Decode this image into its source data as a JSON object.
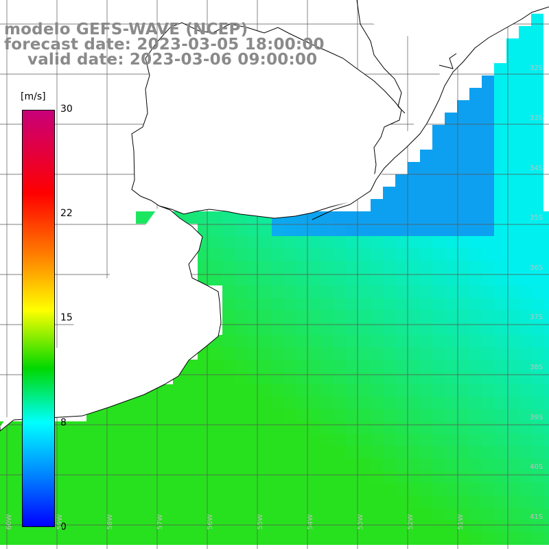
{
  "title": {
    "line1": "modelo GEFS-WAVE (NCEP)",
    "line2": "forecast date: 2023-03-05 18:00:00",
    "line3": "valid date: 2023-03-06 09:00:00"
  },
  "colorbar": {
    "unit": "[m/s]",
    "ticks": [
      "30",
      "22",
      "15",
      "8",
      "0"
    ],
    "stops": [
      "#c8007a",
      "#ff0000",
      "#ff8000",
      "#ffff00",
      "#00d800",
      "#00ffff",
      "#0080ff",
      "#0000ff"
    ]
  },
  "lat_labels": [
    "32S",
    "33S",
    "34S",
    "35S",
    "36S",
    "37S",
    "38S",
    "39S",
    "40S",
    "41S"
  ],
  "lon_labels": [
    "60W",
    "59W",
    "58W",
    "57W",
    "56W",
    "55W",
    "54W",
    "53W",
    "52W",
    "51W"
  ],
  "colors": {
    "land": "#ffffff",
    "coast": "#000000",
    "arrow": "#ffffff",
    "grid": "#555555",
    "title": "#8a8a8a"
  }
}
